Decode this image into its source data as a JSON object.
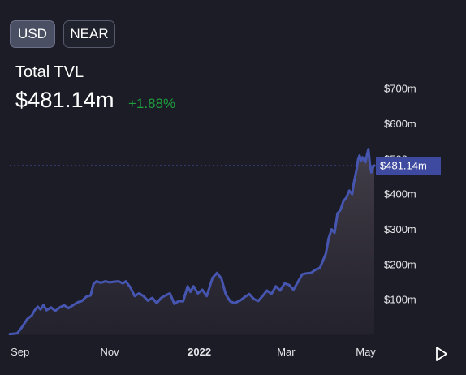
{
  "currency_toggle": {
    "usd_label": "USD",
    "near_label": "NEAR",
    "selected": "USD"
  },
  "summary": {
    "label": "Total TVL",
    "value": "$481.14m",
    "change": "+1.88%"
  },
  "colors": {
    "line": "#4656b0",
    "positive": "#1f9e3e",
    "price_tag": "#3d4aa0",
    "background": "#1c1c26"
  },
  "chart_data": {
    "type": "area",
    "title": "",
    "xlabel": "",
    "ylabel": "",
    "x_tick_labels": [
      "Sep",
      "Nov",
      "2022",
      "Mar",
      "May"
    ],
    "y_tick_labels": [
      "$100m",
      "$200m",
      "$300m",
      "$400m",
      "$500m",
      "$600m",
      "$700m"
    ],
    "ylim": [
      0,
      760
    ],
    "current_value": 481.14,
    "current_value_label": "$481.14m",
    "series": [
      {
        "points": [
          [
            "2021-08-25",
            2
          ],
          [
            "2021-08-30",
            4
          ],
          [
            "2021-09-02",
            20
          ],
          [
            "2021-09-06",
            45
          ],
          [
            "2021-09-09",
            55
          ],
          [
            "2021-09-11",
            70
          ],
          [
            "2021-09-13",
            80
          ],
          [
            "2021-09-15",
            72
          ],
          [
            "2021-09-17",
            85
          ],
          [
            "2021-09-19",
            70
          ],
          [
            "2021-09-22",
            78
          ],
          [
            "2021-09-25",
            68
          ],
          [
            "2021-09-28",
            78
          ],
          [
            "2021-10-01",
            84
          ],
          [
            "2021-10-04",
            76
          ],
          [
            "2021-10-07",
            84
          ],
          [
            "2021-10-10",
            92
          ],
          [
            "2021-10-13",
            96
          ],
          [
            "2021-10-16",
            108
          ],
          [
            "2021-10-19",
            112
          ],
          [
            "2021-10-21",
            145
          ],
          [
            "2021-10-23",
            152
          ],
          [
            "2021-10-26",
            148
          ],
          [
            "2021-10-29",
            152
          ],
          [
            "2021-11-01",
            149
          ],
          [
            "2021-11-04",
            151
          ],
          [
            "2021-11-07",
            152
          ],
          [
            "2021-11-10",
            146
          ],
          [
            "2021-11-12",
            152
          ],
          [
            "2021-11-15",
            135
          ],
          [
            "2021-11-18",
            110
          ],
          [
            "2021-11-21",
            118
          ],
          [
            "2021-11-24",
            110
          ],
          [
            "2021-11-27",
            97
          ],
          [
            "2021-11-30",
            105
          ],
          [
            "2021-12-03",
            90
          ],
          [
            "2021-12-06",
            105
          ],
          [
            "2021-12-09",
            112
          ],
          [
            "2021-12-12",
            118
          ],
          [
            "2021-12-15",
            88
          ],
          [
            "2021-12-18",
            96
          ],
          [
            "2021-12-21",
            95
          ],
          [
            "2021-12-24",
            138
          ],
          [
            "2021-12-26",
            122
          ],
          [
            "2021-12-28",
            138
          ],
          [
            "2021-12-31",
            118
          ],
          [
            "2022-01-03",
            128
          ],
          [
            "2022-01-06",
            110
          ],
          [
            "2022-01-10",
            162
          ],
          [
            "2022-01-13",
            176
          ],
          [
            "2022-01-16",
            160
          ],
          [
            "2022-01-19",
            115
          ],
          [
            "2022-01-22",
            95
          ],
          [
            "2022-01-25",
            90
          ],
          [
            "2022-01-29",
            98
          ],
          [
            "2022-02-01",
            108
          ],
          [
            "2022-02-04",
            116
          ],
          [
            "2022-02-07",
            102
          ],
          [
            "2022-02-10",
            96
          ],
          [
            "2022-02-13",
            110
          ],
          [
            "2022-02-16",
            126
          ],
          [
            "2022-02-19",
            116
          ],
          [
            "2022-02-22",
            138
          ],
          [
            "2022-02-25",
            126
          ],
          [
            "2022-02-28",
            146
          ],
          [
            "2022-03-03",
            142
          ],
          [
            "2022-03-06",
            128
          ],
          [
            "2022-03-09",
            150
          ],
          [
            "2022-03-12",
            172
          ],
          [
            "2022-03-15",
            175
          ],
          [
            "2022-03-18",
            176
          ],
          [
            "2022-03-21",
            185
          ],
          [
            "2022-03-24",
            190
          ],
          [
            "2022-03-26",
            210
          ],
          [
            "2022-03-28",
            230
          ],
          [
            "2022-03-30",
            275
          ],
          [
            "2022-04-01",
            300
          ],
          [
            "2022-04-03",
            290
          ],
          [
            "2022-04-05",
            345
          ],
          [
            "2022-04-07",
            355
          ],
          [
            "2022-04-09",
            380
          ],
          [
            "2022-04-11",
            390
          ],
          [
            "2022-04-13",
            410
          ],
          [
            "2022-04-15",
            400
          ],
          [
            "2022-04-16",
            430
          ],
          [
            "2022-04-18",
            470
          ],
          [
            "2022-04-19",
            498
          ],
          [
            "2022-04-20",
            510
          ],
          [
            "2022-04-21",
            495
          ],
          [
            "2022-04-22",
            505
          ],
          [
            "2022-04-23",
            498
          ],
          [
            "2022-04-24",
            490
          ],
          [
            "2022-04-25",
            510
          ],
          [
            "2022-04-26",
            528
          ],
          [
            "2022-04-27",
            485
          ],
          [
            "2022-04-28",
            462
          ],
          [
            "2022-04-29",
            476
          ],
          [
            "2022-04-30",
            481.14
          ]
        ]
      }
    ]
  }
}
